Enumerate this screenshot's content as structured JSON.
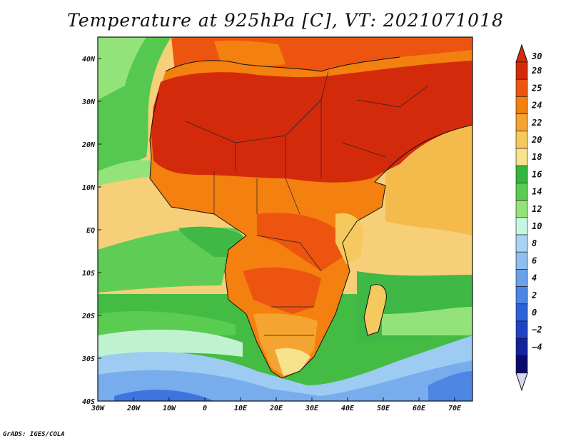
{
  "title": "Temperature at 925hPa [C], VT: 2021071018",
  "credit": "GrADS: IGES/COLA",
  "map": {
    "lon_range": [
      -30,
      75
    ],
    "lat_range": [
      -40,
      45
    ],
    "lon_ticks": [
      "30W",
      "20W",
      "10W",
      "0",
      "10E",
      "20E",
      "30E",
      "40E",
      "50E",
      "60E",
      "70E"
    ],
    "lat_ticks": [
      "40N",
      "30N",
      "20N",
      "10N",
      "EQ",
      "10S",
      "20S",
      "30S",
      "40S"
    ]
  },
  "colorbar": {
    "labels": [
      "30",
      "28",
      "25",
      "24",
      "22",
      "20",
      "18",
      "16",
      "14",
      "12",
      "10",
      "8",
      "6",
      "4",
      "2",
      "0",
      "-2",
      "-4"
    ],
    "colors": [
      "#d42a0c",
      "#ec5410",
      "#f3800f",
      "#f5a431",
      "#f6c95e",
      "#f7e28d",
      "#34b53d",
      "#5acc52",
      "#93e37a",
      "#c7f7e0",
      "#a7d4f4",
      "#8fbeef",
      "#6aa1ea",
      "#4d86e3",
      "#2c63d8",
      "#1d45c2",
      "#14229c",
      "#0a0a6e"
    ],
    "top_arrow_color": "#d42a0c",
    "bottom_arrow_color": "#d6d6f4"
  }
}
